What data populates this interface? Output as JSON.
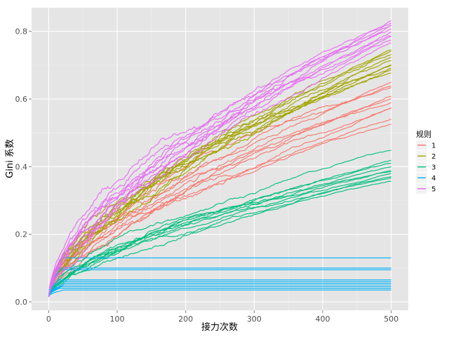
{
  "chart_data": {
    "type": "line",
    "title": "",
    "xlabel": "接力次数",
    "ylabel": "Gini 系数",
    "xlim": [
      -25,
      525
    ],
    "ylim": [
      -0.025,
      0.87
    ],
    "x_ticks": [
      0,
      100,
      200,
      300,
      400,
      500
    ],
    "x_tick_labels": [
      "0",
      "100",
      "200",
      "300",
      "400",
      "500"
    ],
    "y_ticks": [
      0.0,
      0.2,
      0.4,
      0.6,
      0.8
    ],
    "y_tick_labels": [
      "0.0",
      "0.2",
      "0.4",
      "0.6",
      "0.8"
    ],
    "grid": true,
    "legend": {
      "title": "规则",
      "position": "right",
      "items": [
        "1",
        "2",
        "3",
        "4",
        "5"
      ]
    },
    "x_range": [
      0,
      500
    ],
    "start_value": 0.015,
    "series": [
      {
        "name": "1",
        "color": "#F8766D",
        "runs": 10,
        "final_values": [
          0.65,
          0.64,
          0.63,
          0.61,
          0.6,
          0.59,
          0.58,
          0.57,
          0.54,
          0.53
        ]
      },
      {
        "name": "2",
        "color": "#A3A500",
        "runs": 10,
        "final_values": [
          0.745,
          0.74,
          0.73,
          0.72,
          0.715,
          0.705,
          0.7,
          0.695,
          0.69,
          0.68
        ]
      },
      {
        "name": "3",
        "color": "#00BF7D",
        "runs": 10,
        "final_values": [
          0.45,
          0.42,
          0.41,
          0.4,
          0.39,
          0.385,
          0.38,
          0.375,
          0.365,
          0.36
        ]
      },
      {
        "name": "4",
        "color": "#00B0F6",
        "runs": 10,
        "final_values": [
          0.13,
          0.1,
          0.095,
          0.065,
          0.06,
          0.055,
          0.05,
          0.045,
          0.04,
          0.035
        ]
      },
      {
        "name": "5",
        "color": "#E76BF3",
        "runs": 10,
        "final_values": [
          0.84,
          0.83,
          0.82,
          0.815,
          0.81,
          0.8,
          0.79,
          0.785,
          0.78,
          0.77
        ]
      }
    ]
  }
}
